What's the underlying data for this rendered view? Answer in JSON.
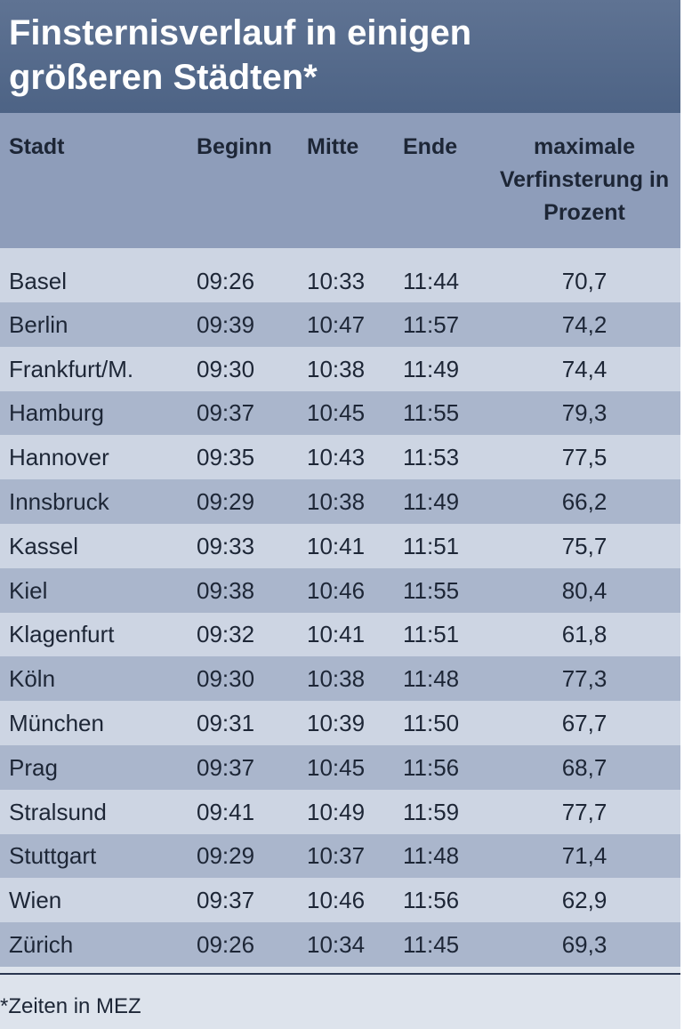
{
  "header": {
    "title": "Finsternisverlauf in einigen größeren Städten*"
  },
  "table": {
    "columns": [
      "Stadt",
      "Beginn",
      "Mitte",
      "Ende",
      "maximale Verfinsterung in Prozent"
    ],
    "rows": [
      [
        "Basel",
        "09:26",
        "10:33",
        "11:44",
        "70,7"
      ],
      [
        "Berlin",
        "09:39",
        "10:47",
        "11:57",
        "74,2"
      ],
      [
        "Frankfurt/M.",
        "09:30",
        "10:38",
        "11:49",
        "74,4"
      ],
      [
        "Hamburg",
        "09:37",
        "10:45",
        "11:55",
        "79,3"
      ],
      [
        "Hannover",
        "09:35",
        "10:43",
        "11:53",
        "77,5"
      ],
      [
        "Innsbruck",
        "09:29",
        "10:38",
        "11:49",
        "66,2"
      ],
      [
        "Kassel",
        "09:33",
        "10:41",
        "11:51",
        "75,7"
      ],
      [
        "Kiel",
        "09:38",
        "10:46",
        "11:55",
        "80,4"
      ],
      [
        "Klagenfurt",
        "09:32",
        "10:41",
        "11:51",
        "61,8"
      ],
      [
        "Köln",
        "09:30",
        "10:38",
        "11:48",
        "77,3"
      ],
      [
        "München",
        "09:31",
        "10:39",
        "11:50",
        "67,7"
      ],
      [
        "Prag",
        "09:37",
        "10:45",
        "11:56",
        "68,7"
      ],
      [
        "Stralsund",
        "09:41",
        "10:49",
        "11:59",
        "77,7"
      ],
      [
        "Stuttgart",
        "09:29",
        "10:37",
        "11:48",
        "71,4"
      ],
      [
        "Wien",
        "09:37",
        "10:46",
        "11:56",
        "62,9"
      ],
      [
        "Zürich",
        "09:26",
        "10:34",
        "11:45",
        "69,3"
      ]
    ]
  },
  "footnote": "*Zeiten in MEZ"
}
